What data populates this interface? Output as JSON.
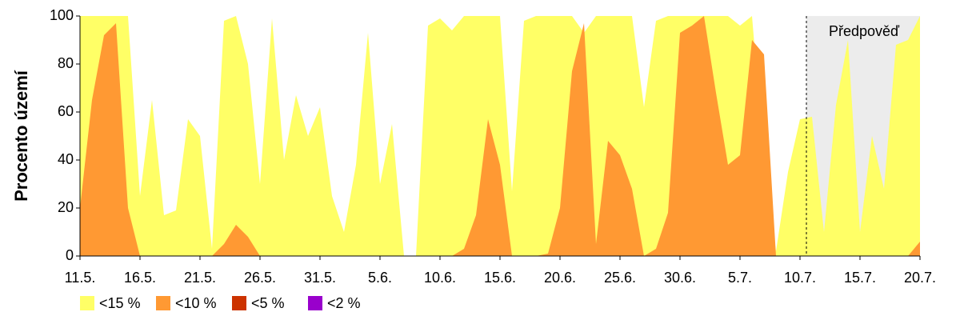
{
  "chart_data": {
    "type": "area",
    "y_label": "Procento území",
    "forecast_label": "Předpověď",
    "categories": [
      "11.5.",
      null,
      null,
      null,
      null,
      "16.5.",
      null,
      null,
      null,
      null,
      "21.5.",
      null,
      null,
      null,
      null,
      "26.5.",
      null,
      null,
      null,
      null,
      "31.5.",
      null,
      null,
      null,
      null,
      "5.6.",
      null,
      null,
      null,
      null,
      "10.6.",
      null,
      null,
      null,
      null,
      "15.6.",
      null,
      null,
      null,
      null,
      "20.6.",
      null,
      null,
      null,
      null,
      "25.6.",
      null,
      null,
      null,
      null,
      "30.6.",
      null,
      null,
      null,
      null,
      "5.7.",
      null,
      null,
      null,
      null,
      "10.7.",
      null,
      null,
      null,
      null,
      "15.7.",
      null,
      null,
      null,
      null,
      "20.7."
    ],
    "series": [
      {
        "name": "<15 %",
        "color": "#ffff66",
        "values": [
          100,
          100,
          100,
          100,
          100,
          25,
          65,
          17,
          19,
          57,
          50,
          3,
          98,
          100,
          80,
          30,
          99,
          40,
          67,
          50,
          62,
          25,
          10,
          38,
          93,
          30,
          55,
          0,
          0,
          96,
          99,
          94,
          100,
          100,
          100,
          100,
          27,
          98,
          100,
          100,
          100,
          100,
          93,
          100,
          100,
          100,
          100,
          62,
          98,
          100,
          100,
          100,
          100,
          100,
          100,
          96,
          100,
          40,
          2,
          35,
          57,
          58,
          10,
          63,
          90,
          10,
          50,
          28,
          88,
          90,
          100
        ]
      },
      {
        "name": "<10 %",
        "color": "#ff9933",
        "values": [
          20,
          65,
          92,
          97,
          20,
          0,
          0,
          0,
          0,
          0,
          0,
          0,
          5,
          13,
          8,
          0,
          0,
          0,
          0,
          0,
          0,
          0,
          0,
          0,
          0,
          0,
          0,
          0,
          0,
          0,
          0,
          0,
          3,
          17,
          57,
          38,
          0,
          0,
          0,
          1,
          20,
          77,
          97,
          5,
          48,
          42,
          28,
          0,
          3,
          18,
          93,
          96,
          100,
          68,
          38,
          42,
          90,
          84,
          0,
          0,
          0,
          0,
          0,
          0,
          0,
          0,
          0,
          0,
          0,
          0,
          6
        ]
      },
      {
        "name": "<5 %",
        "color": "#cc3300",
        "values": [
          0,
          0,
          0,
          0,
          0,
          0,
          0,
          0,
          0,
          0,
          0,
          0,
          0,
          0,
          0,
          0,
          0,
          0,
          0,
          0,
          0,
          0,
          0,
          0,
          0,
          0,
          0,
          0,
          0,
          0,
          0,
          0,
          0,
          0,
          0,
          0,
          0,
          0,
          0,
          0,
          0,
          0,
          0,
          0,
          0,
          0,
          0,
          0,
          0,
          0,
          0,
          0,
          0,
          0,
          0,
          0,
          0,
          0,
          0,
          0,
          0,
          0,
          0,
          0,
          0,
          0,
          0,
          0,
          0,
          0,
          0
        ]
      },
      {
        "name": "<2 %",
        "color": "#9900cc",
        "values": [
          0,
          0,
          0,
          0,
          0,
          0,
          0,
          0,
          0,
          0,
          0,
          0,
          0,
          0,
          0,
          0,
          0,
          0,
          0,
          0,
          0,
          0,
          0,
          0,
          0,
          0,
          0,
          0,
          0,
          0,
          0,
          0,
          0,
          0,
          0,
          0,
          0,
          0,
          0,
          0,
          0,
          0,
          0,
          0,
          0,
          0,
          0,
          0,
          0,
          0,
          0,
          0,
          0,
          0,
          0,
          0,
          0,
          0,
          0,
          0,
          0,
          0,
          0,
          0,
          0,
          0,
          0,
          0,
          0,
          0,
          0
        ]
      }
    ],
    "ylim": [
      0,
      100
    ],
    "yticks": [
      0,
      20,
      40,
      60,
      80,
      100
    ]
  }
}
